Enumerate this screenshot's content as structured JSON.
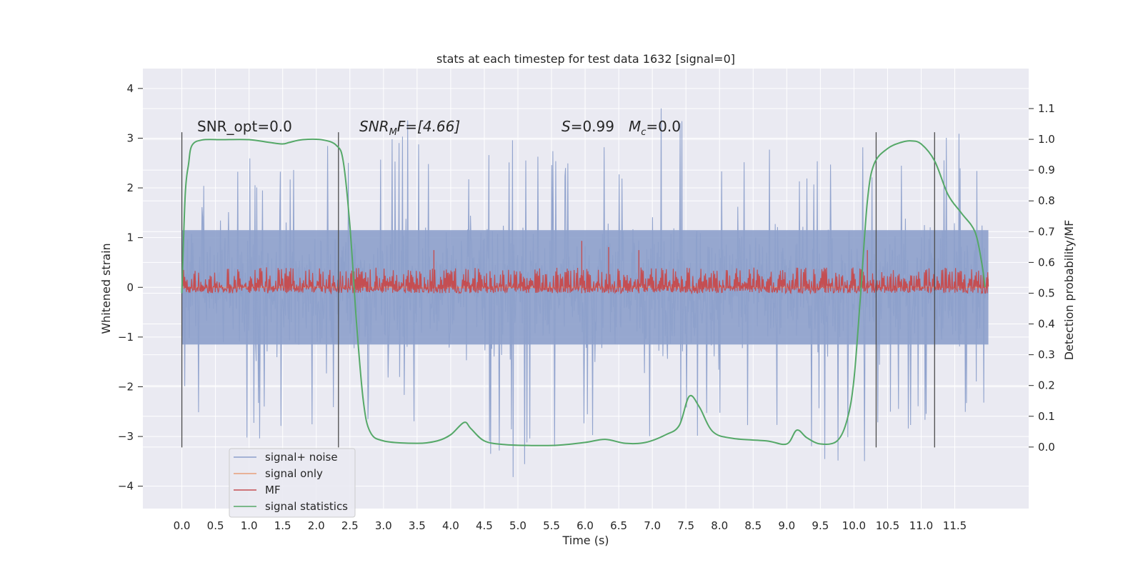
{
  "chart_data": {
    "type": "line",
    "title": "stats at each timestep for test data 1632 [signal=0]",
    "xlabel": "Time (s)",
    "ylabel_left": "Whitened strain",
    "ylabel_right": "Detection probability/MF",
    "xlim": [
      -0.58,
      12.6
    ],
    "ylim_left": [
      -4.45,
      4.4
    ],
    "ylim_right": [
      -0.2,
      1.23
    ],
    "x_ticks": [
      "0.0",
      "0.5",
      "1.0",
      "1.5",
      "2.0",
      "2.5",
      "3.0",
      "3.5",
      "4.0",
      "4.5",
      "5.0",
      "5.5",
      "6.0",
      "6.5",
      "7.0",
      "7.5",
      "8.0",
      "8.5",
      "9.0",
      "9.5",
      "10.0",
      "10.5",
      "11.0",
      "11.5"
    ],
    "y_left_ticks": [
      "4",
      "3",
      "2",
      "1",
      "0",
      "−1",
      "−2",
      "−3",
      "−4"
    ],
    "y_right_ticks": [
      "1.1",
      "1.0",
      "0.9",
      "0.8",
      "0.7",
      "0.6",
      "0.5",
      "0.4",
      "0.3",
      "0.2",
      "0.1",
      "0.0"
    ],
    "grid": true,
    "legend_position": "lower-left",
    "annotations": {
      "snr_opt": "SNR_opt=0.0",
      "snr_mf_prefix": "SNR",
      "snr_mf_sub": "M",
      "snr_mf_suffix": "F=[4.66]",
      "s_prefix": "S",
      "s_value": "=0.99",
      "mc_prefix": "M",
      "mc_sub": "c",
      "mc_value": "=0.0"
    },
    "series": [
      {
        "name": "signal+ noise",
        "color": "#8da0cb",
        "axis": "left",
        "x_range": [
          0.0,
          12.0
        ],
        "envelope_positive": [
          2.2,
          2.8,
          2.6,
          2.7,
          2.9,
          2.8,
          2.6,
          3.4,
          2.9,
          2.8,
          3.0,
          3.0,
          2.7,
          2.9,
          3.1,
          4.0,
          3.0,
          2.9,
          2.8,
          2.7,
          2.8,
          3.0,
          2.9,
          3.2,
          3.3,
          2.8
        ],
        "envelope_negative": [
          -2.2,
          -2.9,
          -3.2,
          -3.0,
          -2.8,
          -3.0,
          -2.9,
          -2.9,
          -3.0,
          -4.1,
          -4.1,
          -3.3,
          -3.3,
          -3.0,
          -3.3,
          -3.6,
          -3.0,
          -2.9,
          -3.0,
          -3.0,
          -3.5,
          -4.0,
          -3.3,
          -3.0,
          -3.0,
          -2.4
        ],
        "dense_amplitude": 1.2
      },
      {
        "name": "signal only",
        "color": "#e8a07a",
        "axis": "left",
        "x": [
          0.0,
          12.0
        ],
        "values": [
          0.0,
          0.0
        ]
      },
      {
        "name": "MF",
        "color": "#c44e52",
        "axis": "right",
        "x_range": [
          0.0,
          12.0
        ],
        "baseline": 0.5,
        "band": [
          0.5,
          0.58
        ],
        "spikes": [
          {
            "x": 3.75,
            "value": 0.64
          },
          {
            "x": 5.95,
            "value": 0.67
          },
          {
            "x": 6.35,
            "value": 0.65
          },
          {
            "x": 6.8,
            "value": 0.64
          },
          {
            "x": 10.2,
            "value": 0.64
          }
        ]
      },
      {
        "name": "signal statistics",
        "color": "#55a868",
        "axis": "right",
        "x": [
          0.0,
          0.05,
          0.1,
          0.15,
          0.3,
          0.6,
          1.0,
          1.3,
          1.5,
          1.6,
          1.8,
          2.1,
          2.3,
          2.4,
          2.5,
          2.6,
          2.7,
          2.8,
          3.0,
          3.5,
          3.8,
          4.0,
          4.2,
          4.3,
          4.5,
          4.8,
          5.2,
          5.6,
          6.0,
          6.3,
          6.6,
          6.9,
          7.2,
          7.4,
          7.55,
          7.7,
          7.9,
          8.2,
          8.7,
          9.0,
          9.15,
          9.3,
          9.5,
          9.75,
          9.9,
          10.0,
          10.1,
          10.2,
          10.3,
          10.5,
          10.7,
          10.85,
          11.0,
          11.2,
          11.4,
          11.6,
          11.8,
          11.9,
          11.95
        ],
        "values": [
          0.5,
          0.82,
          0.92,
          0.98,
          0.998,
          0.999,
          0.999,
          0.99,
          0.985,
          0.99,
          0.999,
          0.998,
          0.98,
          0.93,
          0.72,
          0.4,
          0.15,
          0.05,
          0.02,
          0.012,
          0.02,
          0.04,
          0.08,
          0.06,
          0.02,
          0.008,
          0.005,
          0.006,
          0.015,
          0.025,
          0.012,
          0.015,
          0.04,
          0.07,
          0.165,
          0.13,
          0.05,
          0.028,
          0.02,
          0.01,
          0.055,
          0.03,
          0.01,
          0.02,
          0.09,
          0.22,
          0.5,
          0.8,
          0.92,
          0.97,
          0.99,
          0.995,
          0.985,
          0.93,
          0.82,
          0.76,
          0.7,
          0.6,
          0.52
        ]
      }
    ],
    "vertical_lines": [
      0.0,
      2.33,
      10.33,
      11.2
    ]
  }
}
